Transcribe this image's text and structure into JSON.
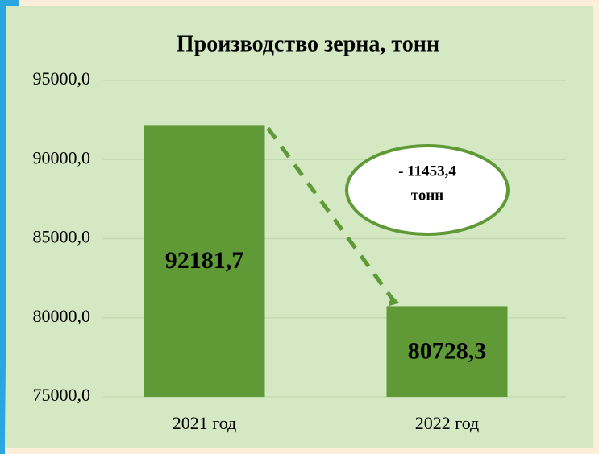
{
  "chart_data": {
    "type": "bar",
    "title": "Производство зерна, тонн",
    "categories": [
      "2021 год",
      "2022 год"
    ],
    "values": [
      92181.7,
      80728.3
    ],
    "value_labels": [
      "92181,7",
      "80728,3"
    ],
    "color": "#5f9a36",
    "ylim": [
      75000,
      95000
    ],
    "yticks": [
      {
        "value": 75000,
        "label": "75000,0"
      },
      {
        "value": 80000,
        "label": "80000,0"
      },
      {
        "value": 85000,
        "label": "85000,0"
      },
      {
        "value": 90000,
        "label": "90000,0"
      },
      {
        "value": 95000,
        "label": "95000,0"
      }
    ],
    "grid": true,
    "annotation": [
      "- 11453,4",
      "тонн"
    ]
  }
}
